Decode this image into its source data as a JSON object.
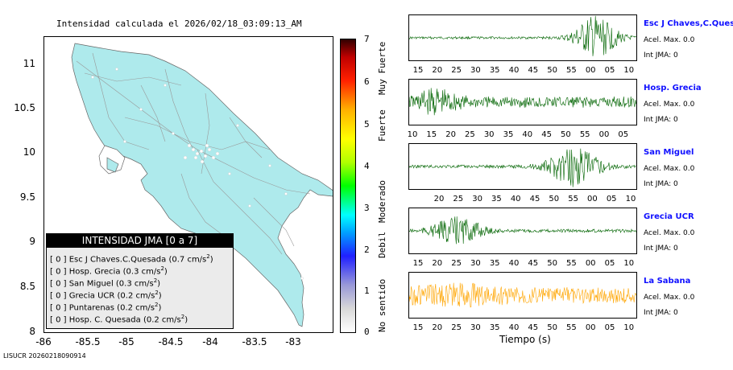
{
  "map": {
    "title": "Intensidad calculada el 2026/02/18_03:09:13_AM",
    "y_ticks": [
      "11",
      "10.5",
      "10",
      "9.5",
      "9",
      "8.5",
      "8"
    ],
    "x_ticks": [
      "-86",
      "-85.5",
      "-85",
      "-84.5",
      "-84",
      "-83.5",
      "-83"
    ],
    "land_color": "#aeeaec"
  },
  "colorbar": {
    "ticks": [
      "7",
      "6",
      "5",
      "4",
      "3",
      "2",
      "1",
      "0"
    ],
    "labels": [
      "Muy Fuerte",
      "Fuerte",
      "Moderado",
      "Debil",
      "No sentido"
    ]
  },
  "legend": {
    "title": "INTENSIDAD JMA [0 a 7]",
    "items": [
      {
        "prefix": "[ 0 ]  Esc J Chaves.C.Quesada (0.7 cm/s",
        "sup": "2",
        "suffix": ")"
      },
      {
        "prefix": "[ 0 ]  Hosp. Grecia (0.3 cm/s",
        "sup": "2",
        "suffix": ")"
      },
      {
        "prefix": "[ 0 ]  San Miguel (0.3 cm/s",
        "sup": "2",
        "suffix": ")"
      },
      {
        "prefix": "[ 0 ]  Grecia UCR (0.2 cm/s",
        "sup": "2",
        "suffix": ")"
      },
      {
        "prefix": "[ 0 ]  Puntarenas (0.2 cm/s",
        "sup": "2",
        "suffix": ")"
      },
      {
        "prefix": "[ 0 ]  Hosp. C. Quesada (0.2 cm/s",
        "sup": "2",
        "suffix": ")"
      }
    ]
  },
  "footer": "LISUCR 20260218090914",
  "stations": [
    {
      "name": "Esc J Chaves,C.Quesada",
      "accel": "Acel. Max. 0.0",
      "int": "Int JMA: 0",
      "color": "#006400",
      "ticks": [
        "15",
        "20",
        "25",
        "30",
        "35",
        "40",
        "45",
        "50",
        "55",
        "00",
        "05",
        "10"
      ]
    },
    {
      "name": "Hosp. Grecia",
      "accel": "Acel. Max. 0.0",
      "int": "Int JMA: 0",
      "color": "#006400",
      "ticks": [
        "10",
        "15",
        "20",
        "25",
        "30",
        "35",
        "40",
        "45",
        "50",
        "55",
        "00",
        "05"
      ]
    },
    {
      "name": "San Miguel",
      "accel": "Acel. Max. 0.0",
      "int": "Int JMA: 0",
      "color": "#006400",
      "ticks": [
        "20",
        "25",
        "30",
        "35",
        "40",
        "45",
        "50",
        "55",
        "00",
        "05",
        "10"
      ]
    },
    {
      "name": "Grecia UCR",
      "accel": "Acel. Max. 0.0",
      "int": "Int JMA: 0",
      "color": "#006400",
      "ticks": [
        "15",
        "20",
        "25",
        "30",
        "35",
        "40",
        "45",
        "50",
        "55",
        "00",
        "05",
        "10"
      ]
    },
    {
      "name": "La Sabana",
      "accel": "Acel. Max. 0.0",
      "int": "Int JMA: 0",
      "color": "#ffa500",
      "ticks": [
        "15",
        "20",
        "25",
        "30",
        "35",
        "40",
        "45",
        "50",
        "55",
        "00",
        "05",
        "10"
      ]
    }
  ],
  "xaxis_label": "Tiempo (s)"
}
